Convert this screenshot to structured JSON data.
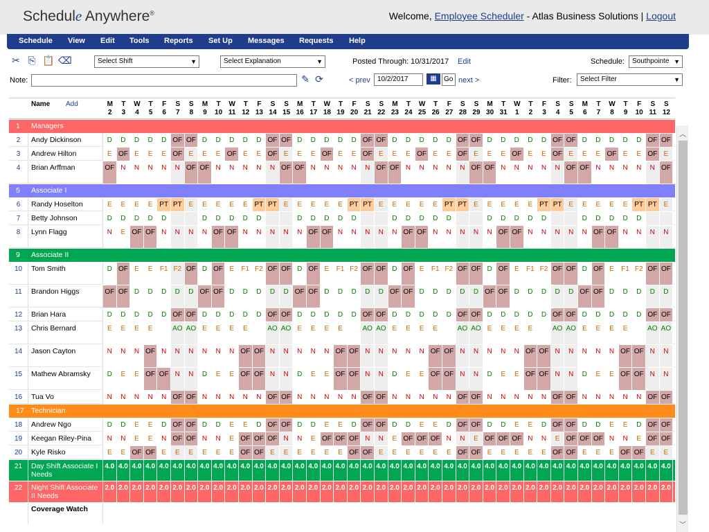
{
  "app": {
    "logo_a": "Schedul",
    "logo_b": "e",
    "logo_c": " Anywhere",
    "logo_tm": "®"
  },
  "welcome": {
    "prefix": "Welcome,",
    "user": "Employee Scheduler",
    "company": " - Atlas Business Solutions  |",
    "logout": "Logout"
  },
  "menu": [
    "Schedule",
    "View",
    "Edit",
    "Tools",
    "Reports",
    "Set Up",
    "Messages",
    "Requests",
    "Help"
  ],
  "toolbar": {
    "shift_select": "Select Shift",
    "explanation_select": "Select Explanation",
    "posted_label": "Posted Through: 10/31/2017",
    "edit_link": "Edit",
    "schedule_label": "Schedule:",
    "schedule_value": "Southpointe",
    "note_label": "Note:",
    "note_value": "",
    "prev": "< prev",
    "date_value": "10/2/2017",
    "go": "Go",
    "next": "next >",
    "filter_label": "Filter:",
    "filter_value": "Select Filter"
  },
  "grid": {
    "name_header": "Name",
    "add_link": "Add",
    "day_letters": [
      "M",
      "T",
      "W",
      "T",
      "F",
      "S",
      "S",
      "M",
      "T",
      "W",
      "T",
      "F",
      "S",
      "S",
      "M",
      "T",
      "W",
      "T",
      "F",
      "S",
      "S",
      "M",
      "T",
      "W",
      "T",
      "F",
      "S",
      "S",
      "M",
      "T",
      "W",
      "T",
      "F",
      "S",
      "S",
      "M",
      "T",
      "W",
      "T",
      "F",
      "S",
      "S"
    ],
    "day_numbers": [
      "2",
      "3",
      "4",
      "5",
      "6",
      "7",
      "8",
      "9",
      "10",
      "11",
      "12",
      "13",
      "14",
      "15",
      "16",
      "17",
      "18",
      "19",
      "20",
      "21",
      "22",
      "23",
      "24",
      "25",
      "26",
      "27",
      "28",
      "29",
      "30",
      "31",
      "1",
      "2",
      "3",
      "4",
      "5",
      "6",
      "7",
      "8",
      "9",
      "10",
      "11",
      "12"
    ],
    "rows": [
      {
        "n": "1",
        "group": "Managers",
        "color": "#ff6666"
      },
      {
        "n": "2",
        "name": "Andy Dickinson",
        "p": "D,D,D,D,D,OF,OF,D,D,D,D,D,OF,OF,D,D,D,D,D,OF,OF,D,D,D,D,D,OF,OF,D,D,D,D,D,OF,OF,D,D,D,D,D,OF,OF"
      },
      {
        "n": "3",
        "name": "Andrew Hilton",
        "p": "E,OF,E,E,E,OF,E,E,E,OF,E,E,OF,E,E,E,OF,E,E,OF,E,E,E,OF,E,E,OF,E,E,E,OF,E,E,OF,E,E,E,OF,E,E,OF,E"
      },
      {
        "n": "4",
        "name": "Brian Arffman",
        "p": "OF,N,N,N,N,N,OF,OF,N,N,N,N,N,OF,OF,N,N,N,N,N,OF,OF,N,N,N,N,N,OF,OF,N,N,N,N,N,OF,OF,N,N,N,N,N,OF"
      },
      {
        "n": "5",
        "group": "Associate I",
        "color": "#8080ff"
      },
      {
        "n": "6",
        "name": "Randy Hoselton",
        "p": "E,E,E,E,PT,PT,E,E,E,E,E,PT,PT,E,E,E,E,E,PT,PT,E,E,E,E,E,PT,PT,E,E,E,E,E,PT,PT,E,E,E,E,E,PT,PT,E"
      },
      {
        "n": "7",
        "name": "Betty Johnson",
        "p": "D,D,D,D,D,,,D,D,D,D,D,,,D,D,D,D,D,,,D,D,D,D,D,,,D,D,D,D,D,,,D,D,D,D,D,,"
      },
      {
        "n": "8",
        "name": "Lynn Flagg",
        "p": "N,E,OF,OF,N,N,N,N,OF,OF,N,N,N,N,N,OF,OF,N,N,N,N,N,OF,OF,N,N,N,N,N,OF,OF,N,N,N,N,N,OF,OF,N,N,N,N"
      },
      {
        "n": "9",
        "group": "Associate II",
        "color": "#00a651"
      },
      {
        "n": "10",
        "name": "Tom Smith",
        "p": "D,OF,E,E,F1,F2,OF,D,OF,E,F1,F2,OF,OF,D,OF,E,F1,F2,OF,OF,D,OF,E,F1,F2,OF,OF,D,OF,E,F1,F2,OF,OF,D,OF,E,F1,F2,OF,OF"
      },
      {
        "n": "11",
        "name": "Brandon Higgs",
        "p": "OF,OF,D,D,D,D,D,OF,OF,D,D,D,D,D,OF,OF,D,D,D,D,D,OF,OF,D,D,D,D,D,OF,OF,D,D,D,D,D,OF,OF,D,D,D,D,D"
      },
      {
        "n": "12",
        "name": "Brian Hara",
        "p": "D,D,D,D,D,OF,OF,D,D,D,D,D,OF,OF,D,D,D,D,D,OF,OF,D,D,D,D,D,OF,OF,D,D,D,D,D,OF,OF,D,D,D,D,D,OF,OF"
      },
      {
        "n": "13",
        "name": "Chris Bernard",
        "p": "E,E,E,E,,AO,AO,E,E,E,E,,AO,AO,E,E,E,E,,AO,AO,E,E,E,E,,AO,AO,E,E,E,E,,AO,AO,E,E,E,E,,AO,AO"
      },
      {
        "n": "14",
        "name": "Jason Cayton",
        "p": "N,N,N,OF,N,N,N,N,N,N,OF,OF,N,N,N,N,N,OF,OF,N,N,N,N,N,OF,OF,N,N,N,N,N,OF,OF,N,N,N,N,N,OF,OF,N,N"
      },
      {
        "n": "15",
        "name": "Mathew Abramsky",
        "p": "D,E,E,OF,OF,N,N,D,E,E,OF,OF,N,N,D,E,E,OF,OF,N,N,D,E,E,OF,OF,N,N,D,E,E,OF,OF,N,N,D,E,E,OF,OF,N,N"
      },
      {
        "n": "16",
        "name": "Tua Vo",
        "p": "N,N,N,N,N,OF,OF,N,N,N,N,N,OF,OF,N,N,N,N,N,OF,OF,N,N,N,N,N,OF,OF,N,N,N,N,N,OF,OF,N,N,N,N,N,OF,OF"
      },
      {
        "n": "17",
        "group": "Technician",
        "color": "#ff8c1a"
      },
      {
        "n": "18",
        "name": "Andrew Ngo",
        "p": "D,D,E,E,D,OF,OF,D,D,E,E,D,OF,OF,D,D,E,E,D,OF,OF,D,D,E,E,D,OF,OF,D,D,E,E,D,OF,OF,D,D,E,E,D,OF,OF"
      },
      {
        "n": "19",
        "name": "Keegan Riley-Pina",
        "p": "N,N,E,E,N,OF,OF,N,N,E,OF,OF,OF,N,N,E,OF,OF,OF,N,N,E,OF,OF,OF,N,N,E,OF,OF,OF,N,N,E,OF,OF,OF,N,N,E,OF,OF"
      },
      {
        "n": "20",
        "name": "Kyle Risko",
        "p": "E,E,OF,OF,E,E,E,E,E,E,OF,OF,E,E,E,E,E,E,OF,OF,E,E,E,E,E,E,OF,OF,E,E,E,E,E,OF,OF,E,E,E,OF,OF,E,E"
      },
      {
        "n": "21",
        "summary": "Day Shift Associate I Needs",
        "value": "4.0",
        "color": "#00a651"
      },
      {
        "n": "22",
        "summary": "Night Shift Associate II Needs",
        "value": "2.0",
        "color": "#ff6666"
      },
      {
        "n": "",
        "summary": "Coverage Watch",
        "value": "",
        "color": "#ffffff"
      }
    ]
  },
  "colors": {
    "accent": "#1f3d8c",
    "off": "#d4a7a7",
    "pto": "#ffcc99",
    "vac": "#ffeeaa",
    "train": "#99eedd",
    "sick": "#cce8cc",
    "weekend": "#eeeeee"
  }
}
